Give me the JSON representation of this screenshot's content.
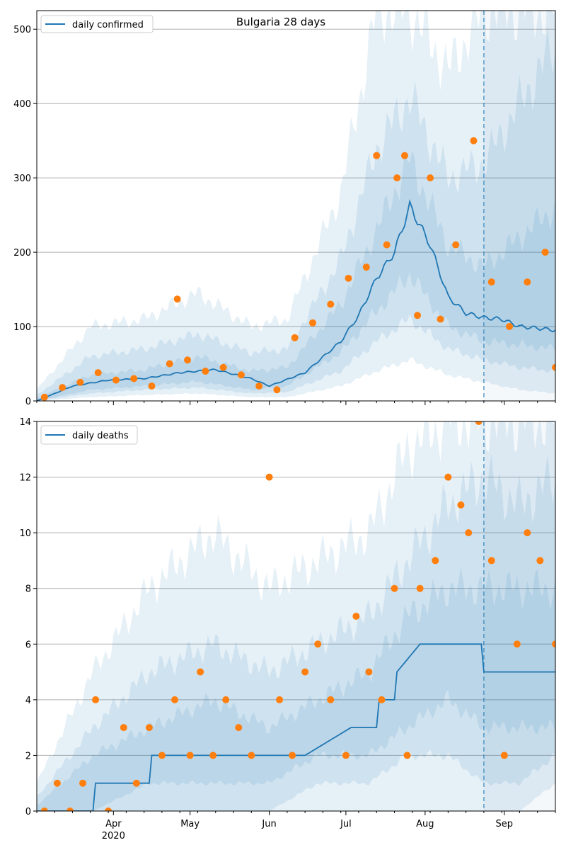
{
  "chart_data": [
    {
      "type": "line",
      "title": "Bulgaria 28 days",
      "legend": {
        "placement": "top-left",
        "entries": [
          "daily confirmed"
        ]
      },
      "xlim": [
        "2020-03-02",
        "2020-09-21"
      ],
      "ylim": [
        0,
        525
      ],
      "yticks": [
        0,
        100,
        200,
        300,
        400,
        500
      ],
      "grid": "horizontal",
      "forecast_start": "2020-08-24",
      "colors": {
        "line": "#1f77b4",
        "points": "#ff7f0e",
        "band": "#1f77b4",
        "grid": "#b0b0b0"
      },
      "series": [
        {
          "name": "daily confirmed",
          "kind": "line",
          "x": [
            "2020-03-02",
            "2020-03-16",
            "2020-03-30",
            "2020-04-13",
            "2020-04-27",
            "2020-05-11",
            "2020-05-25",
            "2020-06-01",
            "2020-06-15",
            "2020-06-29",
            "2020-07-06",
            "2020-07-13",
            "2020-07-20",
            "2020-07-26",
            "2020-08-03",
            "2020-08-10",
            "2020-08-17",
            "2020-08-24",
            "2020-08-31",
            "2020-09-07",
            "2020-09-14",
            "2020-09-21"
          ],
          "y": [
            0,
            20,
            28,
            30,
            38,
            42,
            30,
            20,
            38,
            80,
            115,
            165,
            200,
            262,
            210,
            140,
            118,
            112,
            110,
            100,
            98,
            95
          ]
        },
        {
          "name": "observed",
          "kind": "scatter",
          "x": [
            "2020-03-05",
            "2020-03-12",
            "2020-03-19",
            "2020-03-26",
            "2020-04-02",
            "2020-04-09",
            "2020-04-16",
            "2020-04-23",
            "2020-04-26",
            "2020-04-30",
            "2020-05-07",
            "2020-05-14",
            "2020-05-21",
            "2020-05-28",
            "2020-06-04",
            "2020-06-11",
            "2020-06-18",
            "2020-06-25",
            "2020-07-02",
            "2020-07-09",
            "2020-07-13",
            "2020-07-17",
            "2020-07-21",
            "2020-07-24",
            "2020-07-29",
            "2020-08-03",
            "2020-08-07",
            "2020-08-13",
            "2020-08-20",
            "2020-08-27",
            "2020-09-03",
            "2020-09-10",
            "2020-09-17",
            "2020-09-21"
          ],
          "y": [
            5,
            18,
            25,
            38,
            28,
            30,
            20,
            50,
            137,
            55,
            40,
            45,
            35,
            20,
            15,
            85,
            105,
            130,
            165,
            180,
            330,
            210,
            300,
            330,
            115,
            300,
            110,
            210,
            350,
            160,
            100,
            160,
            200,
            45
          ]
        }
      ],
      "bands": [
        {
          "x": [
            "2020-03-02",
            "2020-03-23",
            "2020-04-13",
            "2020-05-04",
            "2020-05-25",
            "2020-06-08",
            "2020-06-29",
            "2020-07-13",
            "2020-07-26",
            "2020-08-10",
            "2020-08-24",
            "2020-09-07",
            "2020-09-21"
          ],
          "lower": [
            0,
            5,
            8,
            10,
            5,
            5,
            20,
            40,
            55,
            35,
            25,
            15,
            10
          ],
          "upper": [
            15,
            100,
            110,
            145,
            100,
            110,
            280,
            525,
            525,
            445,
            525,
            525,
            525
          ]
        },
        {
          "x": [
            "2020-03-02",
            "2020-03-23",
            "2020-04-13",
            "2020-05-04",
            "2020-05-25",
            "2020-06-08",
            "2020-06-29",
            "2020-07-13",
            "2020-07-26",
            "2020-08-10",
            "2020-08-24",
            "2020-09-07",
            "2020-09-21"
          ],
          "lower": [
            0,
            10,
            15,
            18,
            10,
            12,
            40,
            80,
            110,
            70,
            55,
            45,
            40
          ],
          "upper": [
            8,
            60,
            70,
            90,
            65,
            70,
            190,
            340,
            410,
            300,
            320,
            400,
            480
          ]
        },
        {
          "x": [
            "2020-03-02",
            "2020-03-23",
            "2020-04-13",
            "2020-05-04",
            "2020-05-25",
            "2020-06-08",
            "2020-06-29",
            "2020-07-13",
            "2020-07-26",
            "2020-08-10",
            "2020-08-24",
            "2020-09-07",
            "2020-09-21"
          ],
          "lower": [
            0,
            15,
            20,
            26,
            15,
            20,
            65,
            120,
            170,
            100,
            80,
            75,
            70
          ],
          "upper": [
            4,
            35,
            42,
            60,
            40,
            45,
            130,
            230,
            325,
            210,
            180,
            220,
            260
          ]
        }
      ]
    },
    {
      "type": "line",
      "title": "",
      "legend": {
        "placement": "top-left",
        "entries": [
          "daily deaths"
        ]
      },
      "xlim": [
        "2020-03-02",
        "2020-09-21"
      ],
      "ylim": [
        0,
        14
      ],
      "yticks": [
        0,
        2,
        4,
        6,
        8,
        10,
        12,
        14
      ],
      "xticks": [
        {
          "date": "2020-04-01",
          "label": "Apr",
          "sublabel": "2020"
        },
        {
          "date": "2020-05-01",
          "label": "May"
        },
        {
          "date": "2020-06-01",
          "label": "Jun"
        },
        {
          "date": "2020-07-01",
          "label": "Jul"
        },
        {
          "date": "2020-08-01",
          "label": "Aug"
        },
        {
          "date": "2020-09-01",
          "label": "Sep"
        }
      ],
      "grid": "horizontal",
      "forecast_start": "2020-08-24",
      "colors": {
        "line": "#1f77b4",
        "points": "#ff7f0e",
        "band": "#1f77b4",
        "grid": "#b0b0b0"
      },
      "series": [
        {
          "name": "daily deaths",
          "kind": "line",
          "x": [
            "2020-03-02",
            "2020-03-24",
            "2020-03-25",
            "2020-04-15",
            "2020-04-16",
            "2020-05-20",
            "2020-06-15",
            "2020-07-03",
            "2020-07-13",
            "2020-07-14",
            "2020-07-20",
            "2020-07-21",
            "2020-07-30",
            "2020-08-01",
            "2020-08-15",
            "2020-08-23",
            "2020-08-24",
            "2020-09-21"
          ],
          "y": [
            0,
            0,
            1,
            1,
            2,
            2,
            2,
            3,
            3,
            4,
            4,
            5,
            6,
            6,
            6,
            6,
            5,
            5
          ]
        },
        {
          "name": "observed",
          "kind": "scatter",
          "x": [
            "2020-03-05",
            "2020-03-10",
            "2020-03-15",
            "2020-03-20",
            "2020-03-25",
            "2020-03-30",
            "2020-04-05",
            "2020-04-10",
            "2020-04-15",
            "2020-04-20",
            "2020-04-25",
            "2020-05-01",
            "2020-05-05",
            "2020-05-10",
            "2020-05-15",
            "2020-05-20",
            "2020-05-25",
            "2020-06-01",
            "2020-06-05",
            "2020-06-10",
            "2020-06-15",
            "2020-06-20",
            "2020-06-25",
            "2020-07-01",
            "2020-07-05",
            "2020-07-10",
            "2020-07-15",
            "2020-07-20",
            "2020-07-25",
            "2020-07-30",
            "2020-08-05",
            "2020-08-10",
            "2020-08-15",
            "2020-08-18",
            "2020-08-22",
            "2020-08-27",
            "2020-09-01",
            "2020-09-06",
            "2020-09-10",
            "2020-09-15",
            "2020-09-21"
          ],
          "y": [
            0,
            1,
            0,
            1,
            4,
            0,
            3,
            1,
            3,
            2,
            4,
            2,
            5,
            2,
            4,
            3,
            2,
            12,
            4,
            2,
            5,
            6,
            4,
            2,
            7,
            5,
            4,
            8,
            2,
            8,
            9,
            12,
            11,
            10,
            14,
            9,
            2,
            6,
            10,
            9,
            6
          ]
        }
      ],
      "bands": [
        {
          "x": [
            "2020-03-02",
            "2020-03-24",
            "2020-04-15",
            "2020-05-10",
            "2020-06-01",
            "2020-06-20",
            "2020-07-10",
            "2020-07-25",
            "2020-08-10",
            "2020-08-24",
            "2020-09-07",
            "2020-09-21"
          ],
          "lower": [
            0,
            0,
            0,
            0,
            0,
            0,
            0,
            0,
            0,
            0,
            0,
            1
          ],
          "upper": [
            1,
            5,
            8,
            10,
            8,
            9,
            10,
            13,
            14,
            14,
            14,
            14
          ]
        },
        {
          "x": [
            "2020-03-02",
            "2020-03-24",
            "2020-04-15",
            "2020-05-10",
            "2020-06-01",
            "2020-06-20",
            "2020-07-10",
            "2020-07-25",
            "2020-08-10",
            "2020-08-24",
            "2020-09-07",
            "2020-09-21"
          ],
          "lower": [
            0,
            0,
            0,
            0,
            0,
            1,
            1,
            2,
            2,
            1,
            1,
            2
          ],
          "upper": [
            0.5,
            3,
            5,
            6,
            5,
            6,
            7,
            9,
            11,
            12,
            11,
            12
          ]
        },
        {
          "x": [
            "2020-03-02",
            "2020-03-24",
            "2020-04-15",
            "2020-05-10",
            "2020-06-01",
            "2020-06-20",
            "2020-07-10",
            "2020-07-25",
            "2020-08-10",
            "2020-08-24",
            "2020-09-07",
            "2020-09-21"
          ],
          "lower": [
            0,
            0,
            1,
            1,
            1,
            2,
            2,
            3,
            4,
            3,
            3,
            3
          ],
          "upper": [
            0.2,
            2,
            3,
            4,
            3,
            4,
            5,
            7,
            8,
            8,
            8,
            8
          ]
        }
      ]
    }
  ]
}
